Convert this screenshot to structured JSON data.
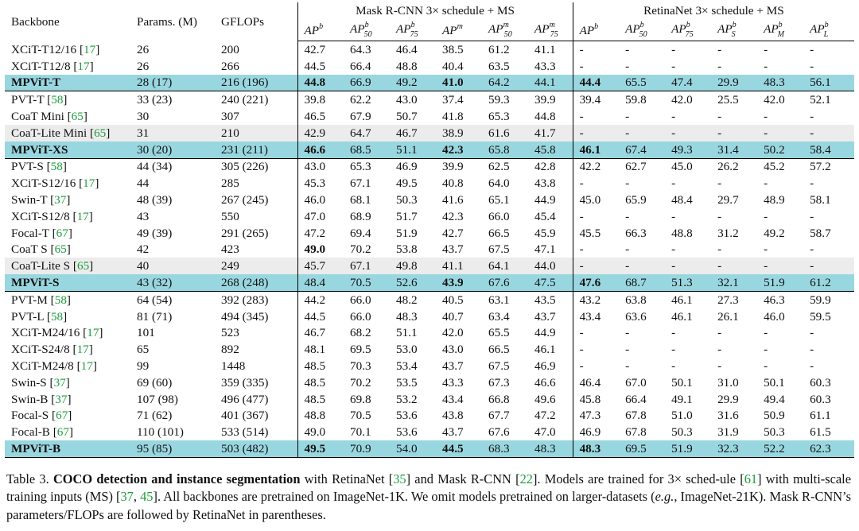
{
  "table": {
    "col_headers": {
      "backbone": "Backbone",
      "params": "Params. (M)",
      "gflops": "GFLOPs",
      "group_mask": "Mask R-CNN 3× schedule + MS",
      "group_retina": "RetinaNet 3× schedule + MS",
      "ap_base": "AP",
      "mask": [
        {
          "sup": "b",
          "sub": ""
        },
        {
          "sup": "b",
          "sub": "50"
        },
        {
          "sup": "b",
          "sub": "75"
        },
        {
          "sup": "m",
          "sub": ""
        },
        {
          "sup": "m",
          "sub": "50"
        },
        {
          "sup": "m",
          "sub": "75"
        }
      ],
      "retina": [
        {
          "sup": "b",
          "sub": ""
        },
        {
          "sup": "b",
          "sub": "50"
        },
        {
          "sup": "b",
          "sub": "75"
        },
        {
          "sup": "b",
          "sub": "S"
        },
        {
          "sup": "b",
          "sub": "M"
        },
        {
          "sup": "b",
          "sub": "L"
        }
      ]
    },
    "rows": [
      {
        "name": "XCiT-T12/16",
        "ref": "17",
        "params": "26",
        "gflops": "200",
        "mask": [
          "42.7",
          "64.3",
          "46.4",
          "38.5",
          "61.2",
          "41.1"
        ],
        "retina": [
          "-",
          "-",
          "-",
          "-",
          "-",
          "-"
        ]
      },
      {
        "name": "XCiT-T12/8",
        "ref": "17",
        "params": "26",
        "gflops": "266",
        "mask": [
          "44.5",
          "66.4",
          "48.8",
          "40.4",
          "63.5",
          "43.3"
        ],
        "retina": [
          "-",
          "-",
          "-",
          "-",
          "-",
          "-"
        ]
      },
      {
        "name": "MPViT-T",
        "ref": "",
        "params": "28 (17)",
        "gflops": "216 (196)",
        "mask": [
          "44.8",
          "66.9",
          "49.2",
          "41.0",
          "64.2",
          "44.1"
        ],
        "retina": [
          "44.4",
          "65.5",
          "47.4",
          "29.9",
          "48.3",
          "56.1"
        ],
        "hl": true,
        "bold_mask": [
          0,
          3
        ],
        "bold_retina": [
          0
        ]
      },
      {
        "name": "PVT-T",
        "ref": "58",
        "params": "33 (23)",
        "gflops": "240 (221)",
        "mask": [
          "39.8",
          "62.2",
          "43.0",
          "37.4",
          "59.3",
          "39.9"
        ],
        "retina": [
          "39.4",
          "59.8",
          "42.0",
          "25.5",
          "42.0",
          "52.1"
        ],
        "top": true
      },
      {
        "name": "CoaT Mini",
        "ref": "65",
        "params": "30",
        "gflops": "307",
        "mask": [
          "46.5",
          "67.9",
          "50.7",
          "41.8",
          "65.3",
          "44.8"
        ],
        "retina": [
          "-",
          "-",
          "-",
          "-",
          "-",
          "-"
        ]
      },
      {
        "name": "CoaT-Lite Mini",
        "ref": "65",
        "params": "31",
        "gflops": "210",
        "mask": [
          "42.9",
          "64.7",
          "46.7",
          "38.9",
          "61.6",
          "41.7"
        ],
        "retina": [
          "-",
          "-",
          "-",
          "-",
          "-",
          "-"
        ],
        "gray": true
      },
      {
        "name": "MPViT-XS",
        "ref": "",
        "params": "30 (20)",
        "gflops": "231 (211)",
        "mask": [
          "46.6",
          "68.5",
          "51.1",
          "42.3",
          "65.8",
          "45.8"
        ],
        "retina": [
          "46.1",
          "67.4",
          "49.3",
          "31.4",
          "50.2",
          "58.4"
        ],
        "hl": true,
        "bold_mask": [
          0,
          3
        ],
        "bold_retina": [
          0
        ]
      },
      {
        "name": "PVT-S",
        "ref": "58",
        "params": "44 (34)",
        "gflops": "305 (226)",
        "mask": [
          "43.0",
          "65.3",
          "46.9",
          "39.9",
          "62.5",
          "42.8"
        ],
        "retina": [
          "42.2",
          "62.7",
          "45.0",
          "26.2",
          "45.2",
          "57.2"
        ],
        "top": true
      },
      {
        "name": "XCiT-S12/16",
        "ref": "17",
        "params": "44",
        "gflops": "285",
        "mask": [
          "45.3",
          "67.1",
          "49.5",
          "40.8",
          "64.0",
          "43.8"
        ],
        "retina": [
          "-",
          "-",
          "-",
          "-",
          "-",
          "-"
        ]
      },
      {
        "name": "Swin-T",
        "ref": "37",
        "params": "48 (39)",
        "gflops": "267 (245)",
        "mask": [
          "46.0",
          "68.1",
          "50.3",
          "41.6",
          "65.1",
          "44.9"
        ],
        "retina": [
          "45.0",
          "65.9",
          "48.4",
          "29.7",
          "48.9",
          "58.1"
        ]
      },
      {
        "name": "XCiT-S12/8",
        "ref": "17",
        "params": "43",
        "gflops": "550",
        "mask": [
          "47.0",
          "68.9",
          "51.7",
          "42.3",
          "66.0",
          "45.4"
        ],
        "retina": [
          "-",
          "-",
          "-",
          "-",
          "-",
          "-"
        ]
      },
      {
        "name": "Focal-T",
        "ref": "67",
        "params": "49 (39)",
        "gflops": "291 (265)",
        "mask": [
          "47.2",
          "69.4",
          "51.9",
          "42.7",
          "66.5",
          "45.9"
        ],
        "retina": [
          "45.5",
          "66.3",
          "48.8",
          "31.2",
          "49.2",
          "58.7"
        ]
      },
      {
        "name": "CoaT S",
        "ref": "65",
        "params": "42",
        "gflops": "423",
        "mask": [
          "49.0",
          "70.2",
          "53.8",
          "43.7",
          "67.5",
          "47.1"
        ],
        "retina": [
          "-",
          "-",
          "-",
          "-",
          "-",
          "-"
        ],
        "bold_mask": [
          0
        ]
      },
      {
        "name": "CoaT-Lite S",
        "ref": "65",
        "params": "40",
        "gflops": "249",
        "mask": [
          "45.7",
          "67.1",
          "49.8",
          "41.1",
          "64.1",
          "44.0"
        ],
        "retina": [
          "-",
          "-",
          "-",
          "-",
          "-",
          "-"
        ],
        "gray": true
      },
      {
        "name": "MPViT-S",
        "ref": "",
        "params": "43 (32)",
        "gflops": "268 (248)",
        "mask": [
          "48.4",
          "70.5",
          "52.6",
          "43.9",
          "67.6",
          "47.5"
        ],
        "retina": [
          "47.6",
          "68.7",
          "51.3",
          "32.1",
          "51.9",
          "61.2"
        ],
        "hl": true,
        "bold_mask": [
          3
        ],
        "bold_retina": [
          0
        ]
      },
      {
        "name": "PVT-M",
        "ref": "58",
        "params": "64 (54)",
        "gflops": "392 (283)",
        "mask": [
          "44.2",
          "66.0",
          "48.2",
          "40.5",
          "63.1",
          "43.5"
        ],
        "retina": [
          "43.2",
          "63.8",
          "46.1",
          "27.3",
          "46.3",
          "59.9"
        ],
        "top": true
      },
      {
        "name": "PVT-L",
        "ref": "58",
        "params": "81 (71)",
        "gflops": "494 (345)",
        "mask": [
          "44.5",
          "66.0",
          "48.3",
          "40.7",
          "63.4",
          "43.7"
        ],
        "retina": [
          "43.4",
          "63.6",
          "46.1",
          "26.1",
          "46.0",
          "59.5"
        ]
      },
      {
        "name": "XCiT-M24/16",
        "ref": "17",
        "params": "101",
        "gflops": "523",
        "mask": [
          "46.7",
          "68.2",
          "51.1",
          "42.0",
          "65.5",
          "44.9"
        ],
        "retina": [
          "-",
          "-",
          "-",
          "-",
          "-",
          "-"
        ]
      },
      {
        "name": "XCiT-S24/8",
        "ref": "17",
        "params": "65",
        "gflops": "892",
        "mask": [
          "48.1",
          "69.5",
          "53.0",
          "43.0",
          "66.5",
          "46.1"
        ],
        "retina": [
          "-",
          "-",
          "-",
          "-",
          "-",
          "-"
        ]
      },
      {
        "name": "XCiT-M24/8",
        "ref": "17",
        "params": "99",
        "gflops": "1448",
        "mask": [
          "48.5",
          "70.3",
          "53.4",
          "43.7",
          "67.5",
          "46.9"
        ],
        "retina": [
          "-",
          "-",
          "-",
          "-",
          "-",
          "-"
        ]
      },
      {
        "name": "Swin-S",
        "ref": "37",
        "params": "69 (60)",
        "gflops": "359 (335)",
        "mask": [
          "48.5",
          "70.2",
          "53.5",
          "43.3",
          "67.3",
          "46.6"
        ],
        "retina": [
          "46.4",
          "67.0",
          "50.1",
          "31.0",
          "50.1",
          "60.3"
        ]
      },
      {
        "name": "Swin-B",
        "ref": "37",
        "params": "107 (98)",
        "gflops": "496 (477)",
        "mask": [
          "48.5",
          "69.8",
          "53.2",
          "43.4",
          "66.8",
          "49.6"
        ],
        "retina": [
          "45.8",
          "66.4",
          "49.1",
          "29.9",
          "49.4",
          "60.3"
        ]
      },
      {
        "name": "Focal-S",
        "ref": "67",
        "params": "71 (62)",
        "gflops": "401 (367)",
        "mask": [
          "48.8",
          "70.5",
          "53.6",
          "43.8",
          "67.7",
          "47.2"
        ],
        "retina": [
          "47.3",
          "67.8",
          "51.0",
          "31.6",
          "50.9",
          "61.1"
        ]
      },
      {
        "name": "Focal-B",
        "ref": "67",
        "params": "110 (101)",
        "gflops": "533 (514)",
        "mask": [
          "49.0",
          "70.1",
          "53.6",
          "43.7",
          "67.6",
          "47.0"
        ],
        "retina": [
          "46.9",
          "67.8",
          "50.3",
          "31.9",
          "50.3",
          "61.5"
        ]
      },
      {
        "name": "MPViT-B",
        "ref": "",
        "params": "95 (85)",
        "gflops": "503 (482)",
        "mask": [
          "49.5",
          "70.9",
          "54.0",
          "44.5",
          "68.3",
          "48.3"
        ],
        "retina": [
          "48.3",
          "69.5",
          "51.9",
          "32.3",
          "52.2",
          "62.3"
        ],
        "hl": true,
        "bold_mask": [
          0,
          3
        ],
        "bold_retina": [
          0
        ],
        "bottom": true
      }
    ]
  },
  "caption": {
    "t_label": "Table 3. ",
    "t_bold": "COCO detection and instance segmentation",
    "t1": " with RetinaNet [",
    "c1": "35",
    "t2": "] and Mask R-CNN [",
    "c2": "22",
    "t3": "]. Models are trained for 3× sched-ule [",
    "c3": "61",
    "t4": "] with multi-scale training inputs (MS) [",
    "c4": "37",
    "t5": ", ",
    "c5": "45",
    "t6": "]. All backbones are pretrained on ImageNet-1K. We omit models pretrained on larger-datasets (",
    "t7_it": "e.g.",
    "t8": ", ImageNet-21K). Mask R-CNN’s parameters/FLOPs are followed by RetinaNet in parentheses."
  }
}
